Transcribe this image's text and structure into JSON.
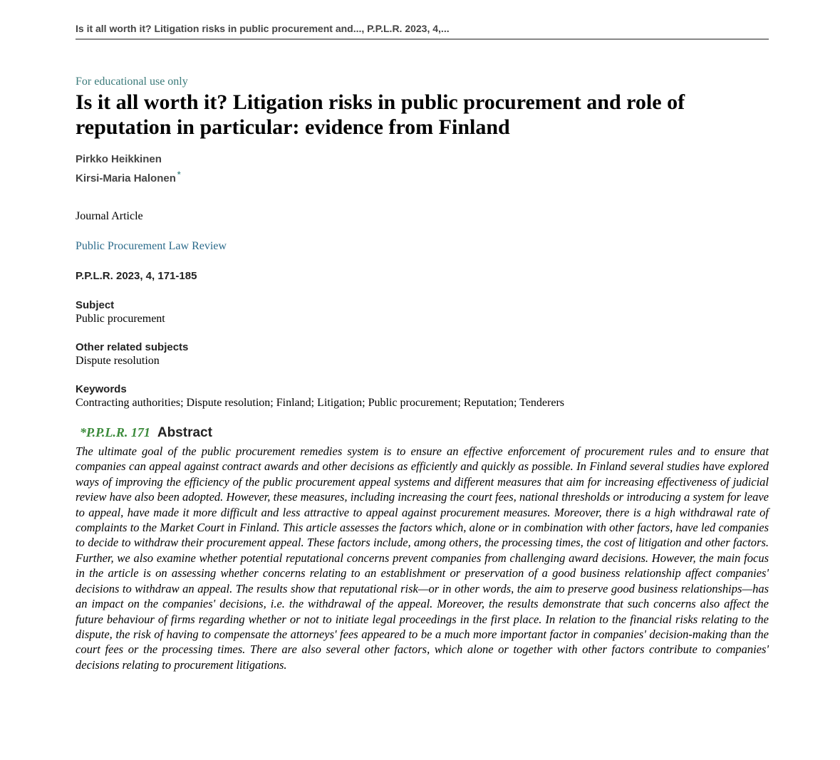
{
  "header": {
    "running_title": "Is it all worth it? Litigation risks in public procurement and..., P.P.L.R. 2023, 4,..."
  },
  "notice": "For educational use only",
  "title": "Is it all worth it? Litigation risks in public procurement and role of reputation in particular: evidence from Finland",
  "authors": [
    {
      "name": "Pirkko Heikkinen",
      "has_footnote": false
    },
    {
      "name": "Kirsi-Maria Halonen",
      "has_footnote": true,
      "footnote_marker": "*"
    }
  ],
  "doc_type": "Journal Article",
  "journal_link": "Public Procurement Law Review",
  "citation": "P.P.L.R. 2023, 4, 171-185",
  "fields": {
    "subject_label": "Subject",
    "subject_value": "Public procurement",
    "related_label": "Other related subjects",
    "related_value": "Dispute resolution",
    "keywords_label": "Keywords",
    "keywords_value": "Contracting authorities; Dispute resolution; Finland; Litigation; Public procurement; Reputation; Tenderers"
  },
  "abstract": {
    "page_ref": "*P.P.L.R. 171",
    "label": "Abstract",
    "text": "The ultimate goal of the public procurement remedies system is to ensure an effective enforcement of procurement rules and to ensure that companies can appeal against contract awards and other decisions as efficiently and quickly as possible. In Finland several studies have explored ways of improving the efficiency of the public procurement appeal systems and different measures that aim for increasing effectiveness of judicial review have also been adopted. However, these measures, including increasing the court fees, national thresholds or introducing a system for leave to appeal, have made it more difficult and less attractive to appeal against procurement measures. Moreover, there is a high withdrawal rate of complaints to the Market Court in Finland. This article assesses the factors which, alone or in combination with other factors, have led companies to decide to withdraw their procurement appeal. These factors include, among others, the processing times, the cost of litigation and other factors. Further, we also examine whether potential reputational concerns prevent companies from challenging award decisions. However, the main focus in the article is on assessing whether concerns relating to an establishment or preservation of a good business relationship affect companies' decisions to withdraw an appeal. The results show that reputational risk—or in other words, the aim to preserve good business relationships—has an impact on the companies' decisions, i.e. the withdrawal of the appeal. Moreover, the results demonstrate that such concerns also affect the future behaviour of firms regarding whether or not to initiate legal proceedings in the first place. In relation to the financial risks relating to the dispute, the risk of having to compensate the attorneys' fees appeared to be a much more important factor in companies' decision-making than the court fees or the processing times. There are also several other factors, which alone or together with other factors contribute to companies' decisions relating to procurement litigations."
  },
  "colors": {
    "link": "#2a6a8a",
    "notice": "#3a7a7a",
    "page_ref": "#3a8a3a",
    "rule": "#888888"
  }
}
